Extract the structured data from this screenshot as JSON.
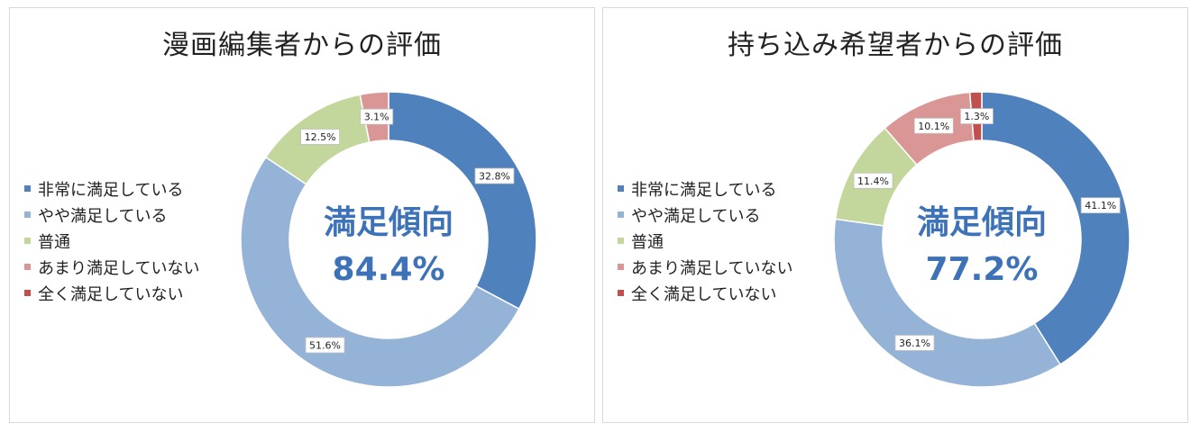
{
  "chart_data": [
    {
      "type": "pie",
      "title": "漫画編集者からの評価",
      "center_label": "満足傾向",
      "center_value": "84.4%",
      "categories": [
        "非常に満足している",
        "やや満足している",
        "普通",
        "あまり満足していない",
        "全く満足していない"
      ],
      "values": [
        32.8,
        51.6,
        12.5,
        3.1,
        0
      ],
      "data_labels": [
        "32.8%",
        "51.6%",
        "12.5%",
        "3.1%",
        ""
      ],
      "colors": [
        "#4f81bd",
        "#95b3d7",
        "#c3d69b",
        "#da9694",
        "#c0504d"
      ],
      "legend_position": "left"
    },
    {
      "type": "pie",
      "title": "持ち込み希望者からの評価",
      "center_label": "満足傾向",
      "center_value": "77.2%",
      "categories": [
        "非常に満足している",
        "やや満足している",
        "普通",
        "あまり満足していない",
        "全く満足していない"
      ],
      "values": [
        41.1,
        36.1,
        11.4,
        10.1,
        1.3
      ],
      "data_labels": [
        "41.1%",
        "36.1%",
        "11.4%",
        "10.1%",
        "1.3%"
      ],
      "colors": [
        "#4f81bd",
        "#95b3d7",
        "#c3d69b",
        "#da9694",
        "#c0504d"
      ],
      "legend_position": "left"
    }
  ]
}
